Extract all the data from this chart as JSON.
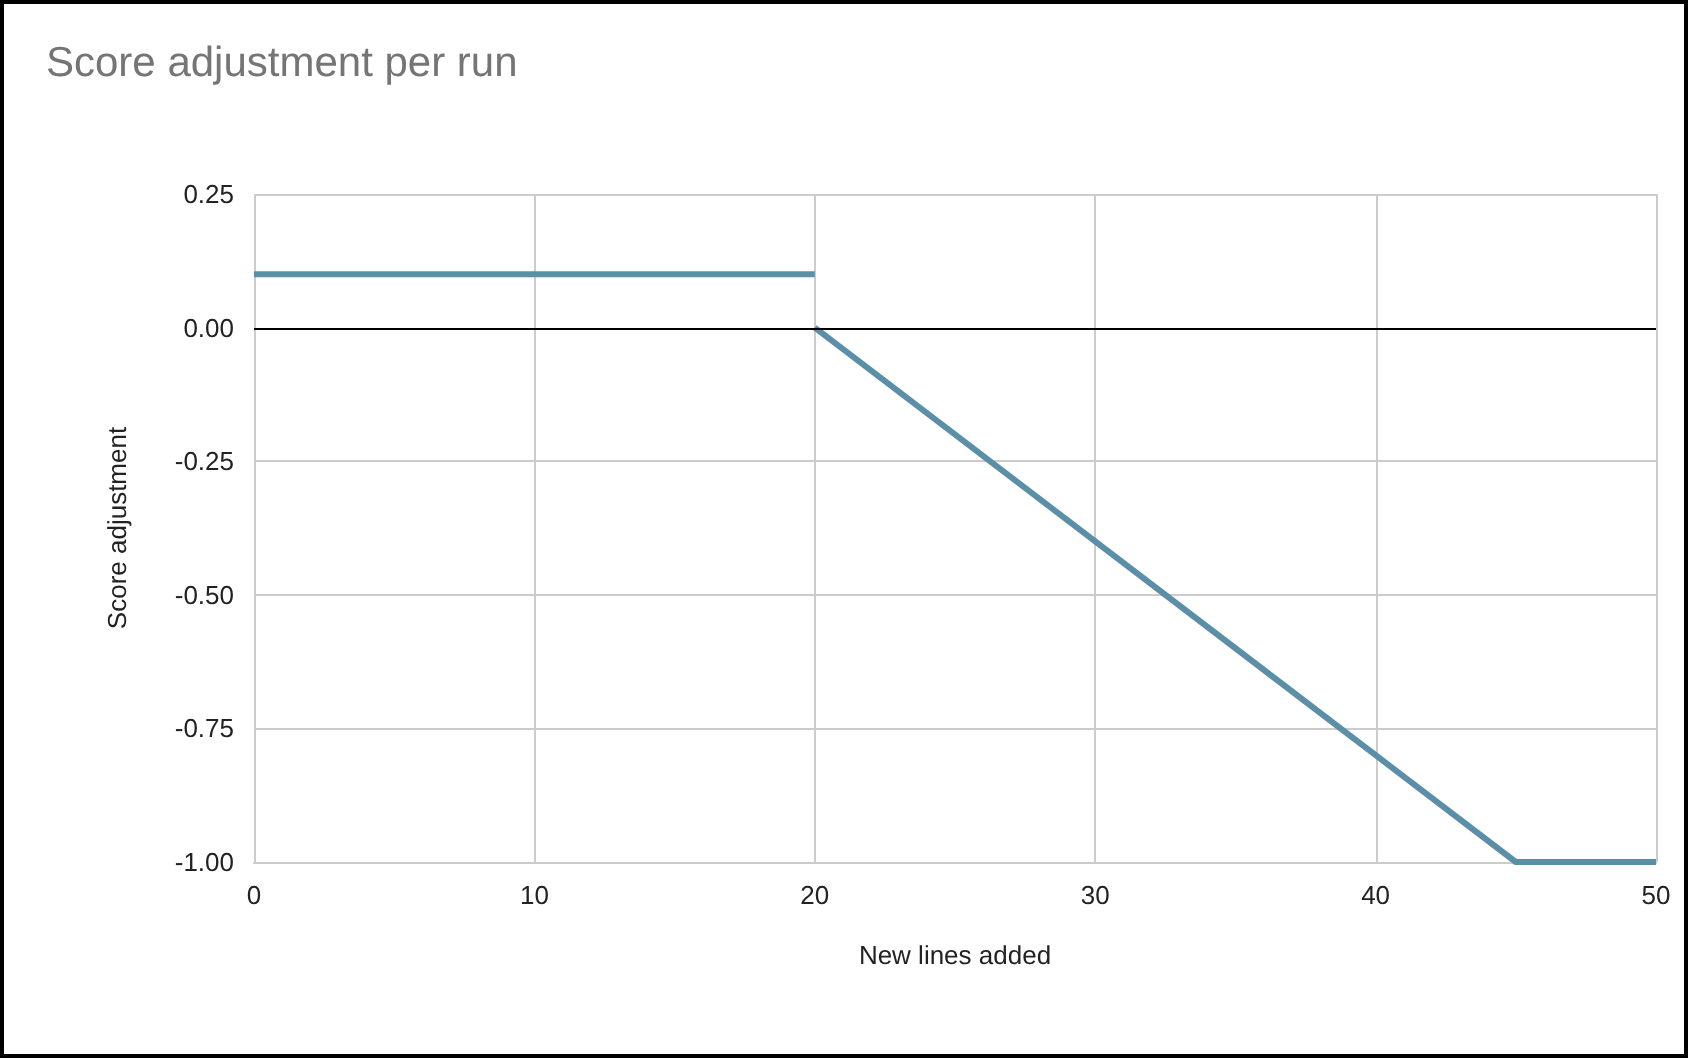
{
  "chart_data": {
    "type": "line",
    "title": "Score adjustment per run",
    "xlabel": "New lines added",
    "ylabel": "Score adjustment",
    "series": [
      {
        "color": "#5b8fa8",
        "x": [
          0,
          20
        ],
        "values": [
          0.1,
          0.1
        ]
      },
      {
        "color": "#5b8fa8",
        "x": [
          20,
          45,
          50
        ],
        "values": [
          0,
          -1,
          -1
        ]
      }
    ],
    "xlim": [
      0,
      50
    ],
    "xticks": [
      0,
      10,
      20,
      30,
      40,
      50
    ],
    "ylim": [
      -1,
      0.25
    ],
    "yticks": [
      {
        "value": -1,
        "label": "-1.00"
      },
      {
        "value": -0.75,
        "label": "-0.75"
      },
      {
        "value": -0.5,
        "label": "-0.50"
      },
      {
        "value": -0.25,
        "label": "-0.25"
      },
      {
        "value": 0,
        "label": "0.00"
      },
      {
        "value": 0.25,
        "label": "0.25"
      }
    ],
    "ref_lines": [
      {
        "axis": "y",
        "value": 0,
        "color": "#000000"
      }
    ],
    "grid": true,
    "marker": "none",
    "line_style": "solid"
  }
}
